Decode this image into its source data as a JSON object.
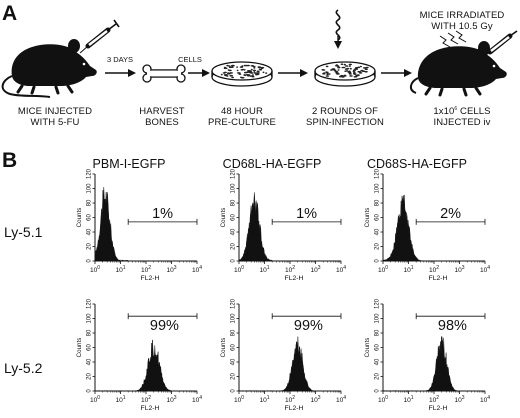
{
  "panels": [
    {
      "letter": "A",
      "steps": [
        {
          "line1": "MICE INJECTED",
          "line2": "WITH 5-FU",
          "icon": "mouse-with-syringe-icon"
        },
        {
          "line1": "HARVEST",
          "line2": "BONES",
          "icon": "bone-icon"
        },
        {
          "line1": "48 HOUR",
          "line2": "PRE-CULTURE",
          "icon": "culture-dish-icon"
        },
        {
          "line1": "2 ROUNDS OF",
          "line2": "SPIN-INFECTION",
          "icon": "culture-dish-spin-icon"
        },
        {
          "line1": "1x10",
          "sup": "6",
          "line1_tail": " CELLS",
          "line2": "INJECTED iv",
          "icon": "mouse-with-syringe-icon"
        }
      ],
      "arrow_labels": [
        "3 DAYS",
        "CELLS"
      ],
      "irradiation": {
        "line1": "MICE IRRADIATED",
        "line2": "WITH 10.5 Gy"
      }
    },
    {
      "letter": "B",
      "columns": [
        "PBM-I-EGFP",
        "CD68L-HA-EGFP",
        "CD68S-HA-EGFP"
      ],
      "rows": [
        "Ly-5.1",
        "Ly-5.2"
      ],
      "x_axis_label": "FL2-H",
      "y_ticks": [
        "0",
        "20",
        "40",
        "60",
        "80",
        "100",
        "120"
      ],
      "x_ticks": [
        {
          "base": "10",
          "exp": "0"
        },
        {
          "base": "10",
          "exp": "1"
        },
        {
          "base": "10",
          "exp": "2"
        },
        {
          "base": "10",
          "exp": "3"
        },
        {
          "base": "10",
          "exp": "4"
        }
      ]
    }
  ],
  "chart_data": [
    {
      "type": "area",
      "row": "Ly-5.1",
      "column": "PBM-I-EGFP",
      "xlabel": "FL2-H",
      "ylabel": "Counts",
      "xscale": "log",
      "xlim": [
        1,
        10000
      ],
      "ylim": [
        0,
        120
      ],
      "gate": [
        20,
        10000
      ],
      "gate_label": "1%",
      "peak_x": 2.5,
      "peak_y": 110,
      "spread_decades": 0.18
    },
    {
      "type": "area",
      "row": "Ly-5.1",
      "column": "CD68L-HA-EGFP",
      "xlabel": "FL2-H",
      "ylabel": "Counts",
      "xscale": "log",
      "xlim": [
        1,
        10000
      ],
      "ylim": [
        0,
        120
      ],
      "gate": [
        20,
        10000
      ],
      "gate_label": "1%",
      "peak_x": 4,
      "peak_y": 95,
      "spread_decades": 0.2
    },
    {
      "type": "area",
      "row": "Ly-5.1",
      "column": "CD68S-HA-EGFP",
      "xlabel": "FL2-H",
      "ylabel": "Counts",
      "xscale": "log",
      "xlim": [
        1,
        10000
      ],
      "ylim": [
        0,
        120
      ],
      "gate": [
        20,
        10000
      ],
      "gate_label": "2%",
      "peak_x": 6,
      "peak_y": 95,
      "spread_decades": 0.22
    },
    {
      "type": "area",
      "row": "Ly-5.2",
      "column": "PBM-I-EGFP",
      "xlabel": "FL2-H",
      "ylabel": "Counts",
      "xscale": "log",
      "xlim": [
        1,
        10000
      ],
      "ylim": [
        0,
        120
      ],
      "gate": [
        20,
        10000
      ],
      "gate_label": "99%",
      "peak_x": 200,
      "peak_y": 75,
      "spread_decades": 0.22
    },
    {
      "type": "area",
      "row": "Ly-5.2",
      "column": "CD68L-HA-EGFP",
      "xlabel": "FL2-H",
      "ylabel": "Counts",
      "xscale": "log",
      "xlim": [
        1,
        10000
      ],
      "ylim": [
        0,
        120
      ],
      "gate": [
        20,
        10000
      ],
      "gate_label": "99%",
      "peak_x": 200,
      "peak_y": 77,
      "spread_decades": 0.2
    },
    {
      "type": "area",
      "row": "Ly-5.2",
      "column": "CD68S-HA-EGFP",
      "xlabel": "FL2-H",
      "ylabel": "Counts",
      "xscale": "log",
      "xlim": [
        1,
        10000
      ],
      "ylim": [
        0,
        120
      ],
      "gate": [
        20,
        10000
      ],
      "gate_label": "98%",
      "peak_x": 200,
      "peak_y": 82,
      "spread_decades": 0.19
    }
  ]
}
